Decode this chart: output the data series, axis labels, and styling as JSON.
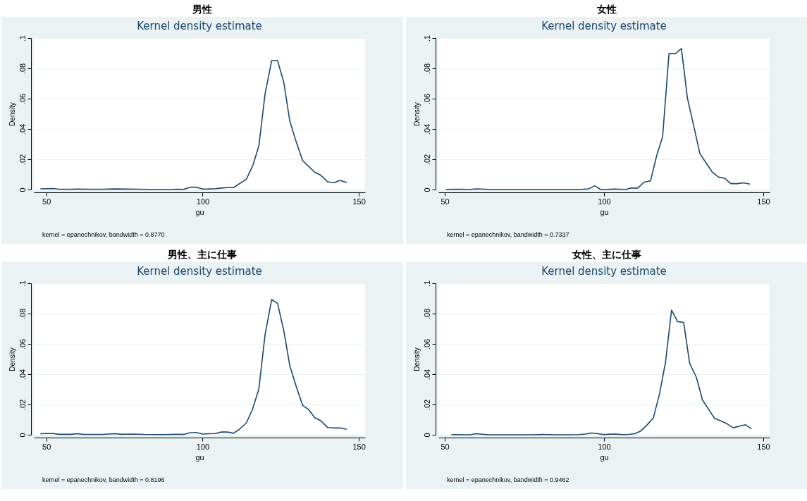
{
  "chart_data": [
    {
      "type": "line",
      "title": "男性",
      "subtitle": "Kernel density estimate",
      "xlabel": "gu",
      "ylabel": "Density",
      "annotations": [
        "kernel = epanechnikov, bandwidth = 0.8770"
      ],
      "xlim": [
        46,
        152
      ],
      "xticks": [
        50,
        100,
        150
      ],
      "ylim": [
        0,
        0.1
      ],
      "yticks": [
        {
          "value": 0,
          "label": "0"
        },
        {
          "value": 0.02,
          "label": ".02"
        },
        {
          "value": 0.04,
          "label": ".04"
        },
        {
          "value": 0.06,
          "label": ".06"
        },
        {
          "value": 0.08,
          "label": ".08"
        },
        {
          "value": 0.1,
          "label": ".1"
        }
      ],
      "grid": "y",
      "marker": "none",
      "line_style": "solid",
      "series": [
        {
          "color": "#1a476f",
          "x": [
            48.1,
            50.2,
            52.1,
            54,
            57.9,
            59.9,
            64.1,
            68,
            71.9,
            75.8,
            79.6,
            83.5,
            87.4,
            90.1,
            92,
            94,
            95.9,
            97.9,
            100,
            102.1,
            104.1,
            106,
            108,
            109.9,
            114,
            116.1,
            118,
            120,
            122.1,
            124,
            126,
            127.9,
            129.8,
            132,
            133.9,
            135.9,
            137.8,
            140,
            142.1,
            144,
            146.1
          ],
          "values": [
            0.0005,
            0.0006,
            0.0007,
            0.0002,
            0.0002,
            0.0003,
            0.0002,
            0.0002,
            0.0004,
            0.0003,
            0.0002,
            0.0001,
            0.0001,
            0.0001,
            0.0002,
            0.0001,
            0.0015,
            0.0016,
            0.0003,
            0.0004,
            0.0006,
            0.001,
            0.0013,
            0.0013,
            0.0068,
            0.016,
            0.0287,
            0.0632,
            0.0851,
            0.0851,
            0.0706,
            0.0453,
            0.0325,
            0.0192,
            0.0154,
            0.0114,
            0.0095,
            0.0051,
            0.0045,
            0.006,
            0.0046
          ]
        }
      ]
    },
    {
      "type": "line",
      "title": "女性",
      "subtitle": "Kernel density estimate",
      "xlabel": "gu",
      "ylabel": "Density",
      "annotations": [
        "kernel = epanechnikov, bandwidth = 0.7337"
      ],
      "xlim": [
        48,
        152
      ],
      "xticks": [
        50,
        100,
        150
      ],
      "ylim": [
        0,
        0.1
      ],
      "yticks": [
        {
          "value": 0,
          "label": "0"
        },
        {
          "value": 0.02,
          "label": ".02"
        },
        {
          "value": 0.04,
          "label": ".04"
        },
        {
          "value": 0.06,
          "label": ".06"
        },
        {
          "value": 0.08,
          "label": ".08"
        },
        {
          "value": 0.1,
          "label": ".1"
        }
      ],
      "grid": "y",
      "marker": "none",
      "line_style": "solid",
      "series": [
        {
          "color": "#1a476f",
          "x": [
            50.3,
            54.1,
            57.8,
            60.1,
            63.9,
            69.9,
            73.7,
            77.5,
            81.2,
            85,
            88.8,
            92.5,
            95.2,
            97.1,
            99,
            100.8,
            103.1,
            105,
            106.9,
            108.5,
            110.6,
            112.6,
            114.6,
            116.5,
            118.4,
            120.4,
            122.4,
            124.3,
            126.2,
            128.1,
            130.1,
            131.9,
            134,
            136,
            137.9,
            139.8,
            141.9,
            143.8,
            145.8
          ],
          "values": [
            0.0001,
            0.0002,
            0.0001,
            0.0005,
            0.0001,
            0.0001,
            0.0001,
            0.0001,
            0.0001,
            0.0001,
            0.0001,
            0.0001,
            0.0005,
            0.0025,
            0,
            0.0001,
            0.0003,
            0.0002,
            0.0001,
            0.001,
            0.001,
            0.0049,
            0.0057,
            0.0221,
            0.0349,
            0.0897,
            0.0897,
            0.0931,
            0.0602,
            0.0426,
            0.0238,
            0.018,
            0.0115,
            0.0082,
            0.0074,
            0.0039,
            0.0039,
            0.0044,
            0.0036
          ]
        }
      ]
    },
    {
      "type": "line",
      "title": "男性、主に仕事",
      "subtitle": "Kernel density estimate",
      "xlabel": "gu",
      "ylabel": "Density",
      "annotations": [
        "kernel = epanechnikov, bandwidth = 0.8196"
      ],
      "xlim": [
        46,
        152
      ],
      "xticks": [
        50,
        100,
        150
      ],
      "ylim": [
        0,
        0.1
      ],
      "yticks": [
        {
          "value": 0,
          "label": "0"
        },
        {
          "value": 0.02,
          "label": ".02"
        },
        {
          "value": 0.04,
          "label": ".04"
        },
        {
          "value": 0.06,
          "label": ".06"
        },
        {
          "value": 0.08,
          "label": ".08"
        },
        {
          "value": 0.1,
          "label": ".1"
        }
      ],
      "grid": "y",
      "marker": "none",
      "line_style": "solid",
      "series": [
        {
          "color": "#1a476f",
          "x": [
            48.1,
            50.2,
            52.1,
            54,
            57.9,
            59.9,
            61.8,
            68,
            71.9,
            74.2,
            77.3,
            81.2,
            87.4,
            92,
            94,
            95.9,
            97.9,
            100,
            102.1,
            104.1,
            106,
            108,
            109.9,
            111.8,
            114,
            115.9,
            118,
            120,
            122.1,
            124,
            126,
            127.9,
            129.8,
            132,
            133.9,
            135.9,
            137.8,
            140,
            142.1,
            144,
            146.1
          ],
          "values": [
            0.0007,
            0.0008,
            0.0008,
            0.0003,
            0.0003,
            0.0007,
            0.0003,
            0.0002,
            0.0007,
            0.0003,
            0.0005,
            0.0002,
            0.0001,
            0.0003,
            0.0002,
            0.0013,
            0.0015,
            0.0005,
            0.0007,
            0.0008,
            0.0018,
            0.0018,
            0.001,
            0.0036,
            0.0078,
            0.0164,
            0.0301,
            0.0661,
            0.0892,
            0.0868,
            0.0685,
            0.0457,
            0.0329,
            0.0195,
            0.0167,
            0.0113,
            0.0093,
            0.0048,
            0.0045,
            0.0045,
            0.0036
          ]
        }
      ]
    },
    {
      "type": "line",
      "title": "女性、主に仕事",
      "subtitle": "Kernel density estimate",
      "xlabel": "gu",
      "ylabel": "Density",
      "annotations": [
        "kernel = epanechnikov, bandwidth = 0.9462"
      ],
      "xlim": [
        48,
        152
      ],
      "xticks": [
        50,
        100,
        150
      ],
      "ylim": [
        0,
        0.1
      ],
      "yticks": [
        {
          "value": 0,
          "label": "0"
        },
        {
          "value": 0.02,
          "label": ".02"
        },
        {
          "value": 0.04,
          "label": ".04"
        },
        {
          "value": 0.06,
          "label": ".06"
        },
        {
          "value": 0.08,
          "label": ".08"
        },
        {
          "value": 0.1,
          "label": ".1"
        }
      ],
      "grid": "y",
      "marker": "none",
      "line_style": "solid",
      "series": [
        {
          "color": "#1a476f",
          "x": [
            52.1,
            54.1,
            56,
            57.9,
            59.8,
            63.6,
            69.6,
            77.1,
            80.5,
            84.7,
            88.4,
            92.2,
            94.1,
            96,
            98.1,
            100,
            102,
            104,
            105.9,
            107.8,
            109.7,
            111.6,
            113.6,
            115.5,
            117.4,
            119.3,
            121.2,
            123.1,
            125,
            126.9,
            129,
            130.9,
            132.8,
            134.7,
            136.6,
            138.5,
            140.6,
            142.3,
            144.4,
            146.3
          ],
          "values": [
            0.0001,
            0.0001,
            0,
            0,
            0.0007,
            0,
            0,
            0,
            0.0002,
            0,
            0,
            0.0001,
            0.0005,
            0.0012,
            0.0007,
            0.0001,
            0.0004,
            0.0004,
            0.0001,
            0.0002,
            0.0007,
            0.0026,
            0.0067,
            0.0112,
            0.0268,
            0.0478,
            0.0823,
            0.0747,
            0.0742,
            0.047,
            0.0379,
            0.023,
            0.0169,
            0.0108,
            0.0092,
            0.0074,
            0.0046,
            0.0056,
            0.0066,
            0.0039
          ]
        }
      ]
    }
  ]
}
